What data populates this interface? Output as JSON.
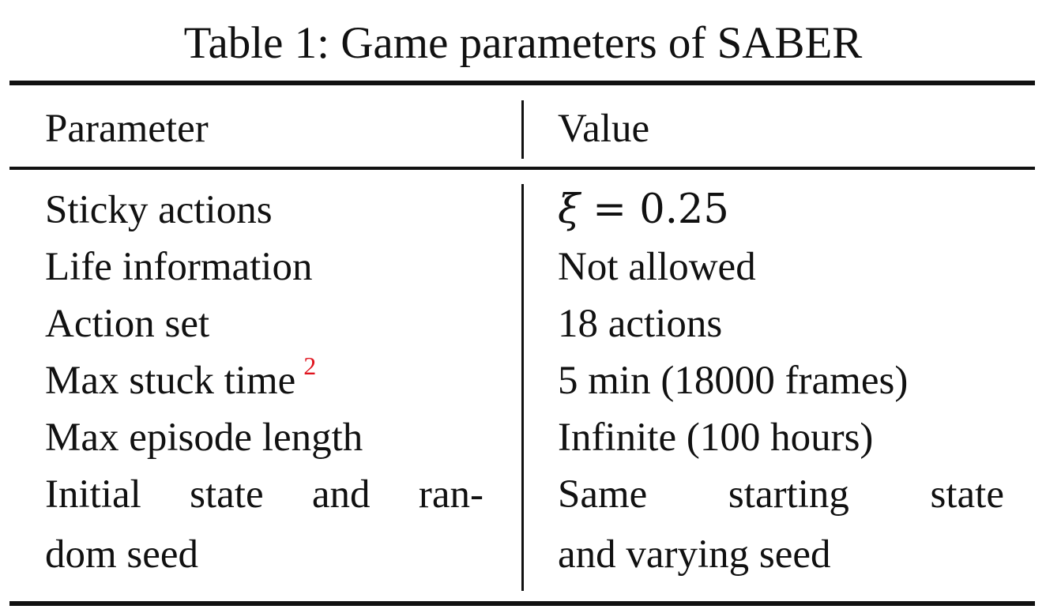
{
  "caption": "Table 1: Game parameters of SABER",
  "table": {
    "headers": {
      "parameter": "Parameter",
      "value": "Value"
    },
    "rows": [
      {
        "parameter": "Sticky actions",
        "value_symbol": "ξ",
        "value_rest": " = 0.25"
      },
      {
        "parameter": "Life information",
        "value": "Not allowed"
      },
      {
        "parameter": "Action set",
        "value": "18 actions"
      },
      {
        "parameter": "Max stuck time",
        "footnote": "2",
        "value": "5 min (18000 frames)"
      },
      {
        "parameter": "Max episode length",
        "value": "Infinite (100 hours)"
      },
      {
        "parameter_line1": [
          "Initial",
          "state",
          "and",
          "ran-"
        ],
        "parameter_line2": "dom seed",
        "value_line1": [
          "Same",
          "starting",
          "state"
        ],
        "value_line2": "and varying seed"
      }
    ]
  },
  "colors": {
    "text": "#111111",
    "footnote": "#e0141e"
  }
}
